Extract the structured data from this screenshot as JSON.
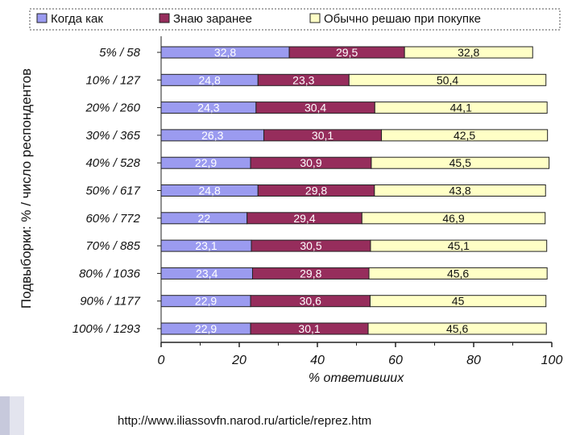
{
  "footer": {
    "url": "http://www.iliassovfn.narod.ru/article/reprez.htm"
  },
  "chart_data": {
    "type": "bar",
    "orientation": "horizontal",
    "stacked": true,
    "title": "",
    "xlabel": "% ответивших",
    "ylabel": "Подвыборки: % / число респондентов",
    "xlim": [
      0,
      100
    ],
    "x_ticks": [
      "0",
      "20",
      "40",
      "60",
      "80",
      "100"
    ],
    "legend_position": "top",
    "grid": false,
    "categories": [
      "5% / 58",
      "10% / 127",
      "20% / 260",
      "30% / 365",
      "40% / 528",
      "50% / 617",
      "60% / 772",
      "70% / 885",
      "80% / 1036",
      "90% / 1177",
      "100% / 1293"
    ],
    "series": [
      {
        "name": "Когда как",
        "color": "#9b9bf0",
        "label_color": "#ffffff",
        "values": [
          32.8,
          24.8,
          24.3,
          26.3,
          22.9,
          24.8,
          22,
          23.1,
          23.4,
          22.9,
          22.9
        ],
        "labels": [
          "32,8",
          "24,8",
          "24,3",
          "26,3",
          "22,9",
          "24,8",
          "22",
          "23,1",
          "23,4",
          "22,9",
          "22,9"
        ]
      },
      {
        "name": "Знаю заранее",
        "color": "#962d5c",
        "label_color": "#ffffff",
        "values": [
          29.5,
          23.3,
          30.4,
          30.1,
          30.9,
          29.8,
          29.4,
          30.5,
          29.8,
          30.6,
          30.1
        ],
        "labels": [
          "29,5",
          "23,3",
          "30,4",
          "30,1",
          "30,9",
          "29,8",
          "29,4",
          "30,5",
          "29,8",
          "30,6",
          "30,1"
        ]
      },
      {
        "name": "Обычно решаю при покупке",
        "color": "#ffffc6",
        "label_color": "#111111",
        "values": [
          32.8,
          50.4,
          44.1,
          42.5,
          45.5,
          43.8,
          46.9,
          45.1,
          45.6,
          45,
          45.6
        ],
        "labels": [
          "32,8",
          "50,4",
          "44,1",
          "42,5",
          "45,5",
          "43,8",
          "46,9",
          "45,1",
          "45,6",
          "45",
          "45,6"
        ]
      }
    ]
  }
}
